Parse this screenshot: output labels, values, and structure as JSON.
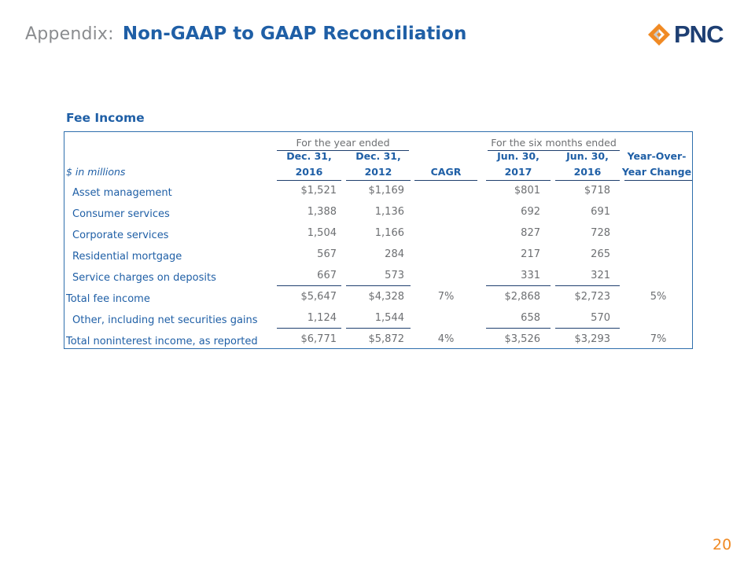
{
  "header": {
    "prefix": "Appendix:",
    "title": "Non-GAAP to GAAP Reconciliation",
    "logo_text": "PNC",
    "logo_icon": "pnc-triangle-logo-icon",
    "colors": {
      "blue": "#1f5fa6",
      "gray": "#8a8c8f",
      "orange": "#f08a24",
      "navy": "#1e3f73"
    }
  },
  "section": {
    "title": "Fee Income"
  },
  "table": {
    "group_headers": {
      "year": "For the year ended",
      "six_months": "For the six months ended"
    },
    "units_label": "$ in millions",
    "columns": [
      {
        "line1": "Dec. 31,",
        "line2": "2016"
      },
      {
        "line1": "Dec. 31,",
        "line2": "2012"
      },
      {
        "line1": "",
        "line2": "CAGR"
      },
      {
        "line1": "Jun. 30,",
        "line2": "2017"
      },
      {
        "line1": "Jun. 30,",
        "line2": "2016"
      },
      {
        "line1": "Year-Over-",
        "line2": "Year Change"
      }
    ],
    "rows": [
      {
        "label": "Asset management",
        "values": [
          "$1,521",
          "$1,169",
          "",
          "$801",
          "$718",
          ""
        ]
      },
      {
        "label": "Consumer services",
        "values": [
          "1,388",
          "1,136",
          "",
          "692",
          "691",
          ""
        ]
      },
      {
        "label": "Corporate services",
        "values": [
          "1,504",
          "1,166",
          "",
          "827",
          "728",
          ""
        ]
      },
      {
        "label": "Residential mortgage",
        "values": [
          "567",
          "284",
          "",
          "217",
          "265",
          ""
        ]
      },
      {
        "label": "Service charges on deposits",
        "values": [
          "667",
          "573",
          "",
          "331",
          "321",
          ""
        ]
      },
      {
        "label": "Total fee income",
        "values": [
          "$5,647",
          "$4,328",
          "7%",
          "$2,868",
          "$2,723",
          "5%"
        ]
      },
      {
        "label": "Other, including net securities gains",
        "values": [
          "1,124",
          "1,544",
          "",
          "658",
          "570",
          ""
        ]
      },
      {
        "label": "Total noninterest income, as reported",
        "values": [
          "$6,771",
          "$5,872",
          "4%",
          "$3,526",
          "$3,293",
          "7%"
        ]
      }
    ]
  },
  "footer": {
    "page_number": "20"
  }
}
